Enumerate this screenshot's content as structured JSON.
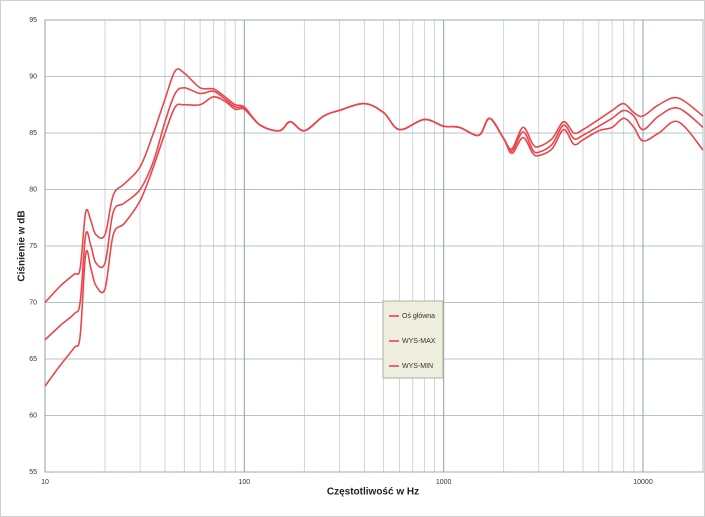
{
  "chart_data": {
    "type": "line",
    "y_label": "Ciśnienie w dB",
    "x_label": "Częstotliwość w Hz",
    "log_x": true,
    "grid": true,
    "legend_position": "center",
    "xlim": [
      10,
      20000
    ],
    "ylim": [
      55,
      95
    ],
    "xticks": [
      10,
      100,
      1000,
      10000
    ],
    "xminor": [
      20,
      30,
      40,
      50,
      60,
      70,
      80,
      90,
      200,
      300,
      400,
      500,
      600,
      700,
      800,
      900,
      2000,
      3000,
      4000,
      5000,
      6000,
      7000,
      8000,
      9000,
      20000
    ],
    "yticks": [
      55,
      60,
      65,
      70,
      75,
      80,
      85,
      90,
      95
    ],
    "x": [
      10,
      12,
      14,
      15,
      16,
      17,
      18,
      20,
      22,
      25,
      30,
      35,
      40,
      45,
      50,
      60,
      70,
      80,
      90,
      100,
      120,
      150,
      170,
      200,
      250,
      300,
      400,
      500,
      600,
      800,
      1000,
      1200,
      1500,
      1700,
      2000,
      2200,
      2500,
      2800,
      3000,
      3500,
      4000,
      4500,
      5000,
      6000,
      7000,
      8000,
      9000,
      10000,
      12000,
      15000,
      20000
    ],
    "series": [
      {
        "name": "Oś główna",
        "color": "#e8474c",
        "values": [
          66.7,
          68,
          69,
          70,
          76,
          75,
          73.5,
          73.5,
          78,
          78.8,
          80,
          82.5,
          86,
          88.5,
          89,
          88.5,
          88.7,
          88,
          87.3,
          87.2,
          85.7,
          85.2,
          86,
          85.2,
          86.5,
          87,
          87.6,
          86.8,
          85.3,
          86.2,
          85.6,
          85.5,
          84.8,
          86.3,
          84.5,
          83.4,
          85.1,
          83.5,
          83.3,
          84,
          85.7,
          84.5,
          84.8,
          85.6,
          86.3,
          87,
          86.5,
          85.3,
          86.5,
          87.2,
          85.5
        ]
      },
      {
        "name": "WYS-MAX",
        "color": "#e8474c",
        "values": [
          70,
          71.5,
          72.5,
          73,
          78,
          77.2,
          76,
          76,
          79.5,
          80.5,
          82,
          85,
          88,
          90.5,
          90.3,
          89,
          88.9,
          88.2,
          87.5,
          87.3,
          85.7,
          85.2,
          86,
          85.2,
          86.5,
          87,
          87.6,
          86.8,
          85.3,
          86.2,
          85.6,
          85.5,
          84.8,
          86.3,
          84.5,
          83.6,
          85.5,
          84,
          83.8,
          84.5,
          86,
          85,
          85.3,
          86.2,
          87,
          87.6,
          86.8,
          86.5,
          87.5,
          88.1,
          86.5
        ]
      },
      {
        "name": "WYS-MIN",
        "color": "#e8474c",
        "values": [
          62.6,
          64.5,
          66,
          67,
          74.3,
          73,
          71.5,
          71.2,
          76,
          77,
          79,
          82,
          85,
          87.3,
          87.5,
          87.5,
          88.2,
          87.8,
          87.1,
          87.1,
          85.7,
          85.2,
          86,
          85.2,
          86.5,
          87,
          87.6,
          86.8,
          85.3,
          86.2,
          85.6,
          85.5,
          84.8,
          86.3,
          84.5,
          83.2,
          84.6,
          83.2,
          83,
          83.6,
          85.3,
          84,
          84.4,
          85.2,
          85.5,
          86.3,
          85.5,
          84.3,
          85,
          86,
          83.5
        ]
      }
    ]
  }
}
